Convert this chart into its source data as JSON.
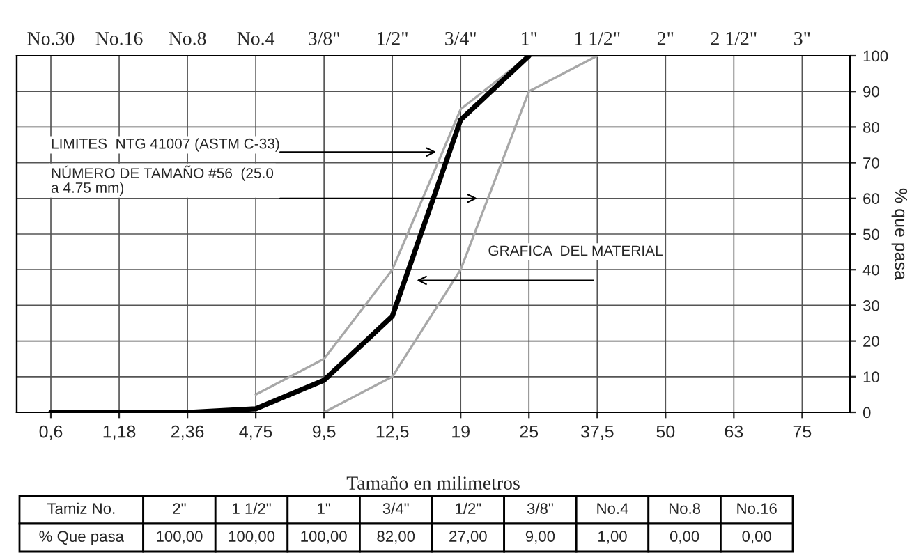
{
  "chart_data": {
    "type": "line",
    "categories": [
      "0,6",
      "1,18",
      "2,36",
      "4,75",
      "9,5",
      "12,5",
      "19",
      "25",
      "37,5",
      "50",
      "63",
      "75"
    ],
    "series": [
      {
        "color": "#a8a8a8",
        "values": [
          null,
          null,
          null,
          5,
          15,
          40,
          85,
          100,
          100,
          null,
          null,
          null
        ]
      },
      {
        "color": "#a8a8a8",
        "values": [
          null,
          null,
          null,
          null,
          0,
          10,
          40,
          90,
          100,
          null,
          null,
          null
        ]
      },
      {
        "color": "#000000",
        "values": [
          0,
          0,
          0,
          1,
          9,
          27,
          82,
          100,
          null,
          null,
          null,
          null
        ]
      }
    ],
    "ylim": [
      0,
      100
    ],
    "yticks": [
      0,
      10,
      20,
      30,
      40,
      50,
      60,
      70,
      80,
      90,
      100
    ],
    "xlabel": "Tamaño en milimetros",
    "ylabel": "% que pasa",
    "grid": true,
    "marker": "none",
    "line_style": "solid",
    "annotations": [
      "LIMITES  NTG 41007 (ASTM C-33)",
      "NÚMERO DE TAMAÑO #56  (25.0\na 4.75 mm)",
      "GRAFICA  DEL MATERIAL",
      "No.30",
      "No.16",
      "No.8",
      "No.4",
      "3/8\"",
      "1/2\"",
      "3/4\"",
      "1\"",
      "1 1/2\"",
      "2\"",
      "2 1/2\"",
      "3\"",
      "Tamiz No.",
      "2\"",
      "1 1/2\"",
      "1\"",
      "3/4\"",
      "1/2\"",
      "3/8\"",
      "No.4",
      "No.8",
      "No.16",
      "% Que pasa",
      "100,00",
      "100,00",
      "100,00",
      "82,00",
      "27,00",
      "9,00",
      "1,00",
      "0,00",
      "0,00"
    ]
  }
}
